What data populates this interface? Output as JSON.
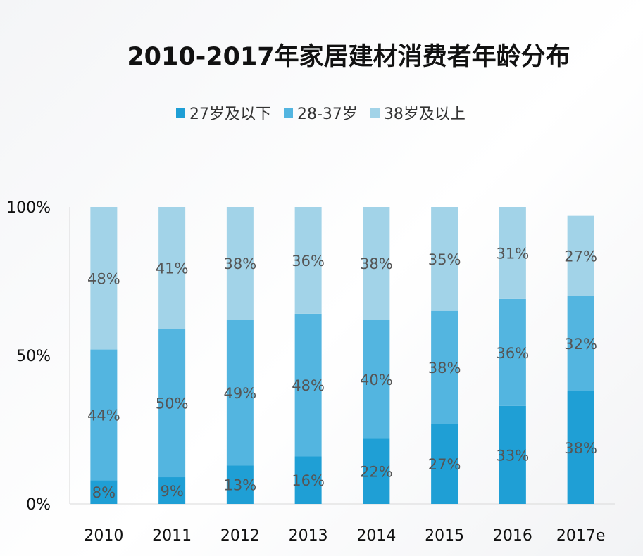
{
  "chart_data": {
    "type": "bar",
    "stacked": true,
    "title": "2010-2017年家居建材消费者年龄分布",
    "categories": [
      "2010",
      "2011",
      "2012",
      "2013",
      "2014",
      "2015",
      "2016",
      "2017e"
    ],
    "series": [
      {
        "name": "27岁及以下",
        "color": "#1f9fd5",
        "values": [
          8,
          9,
          13,
          16,
          22,
          27,
          33,
          38
        ],
        "labels": [
          "8%",
          "9%",
          "13%",
          "16%",
          "22%",
          "27%",
          "33%",
          "38%"
        ]
      },
      {
        "name": "28-37岁",
        "color": "#53b5e0",
        "values": [
          44,
          50,
          49,
          48,
          40,
          38,
          36,
          32
        ],
        "labels": [
          "44%",
          "50%",
          "49%",
          "48%",
          "40%",
          "38%",
          "36%",
          "32%"
        ]
      },
      {
        "name": "38岁及以上",
        "color": "#a2d3e8",
        "values": [
          48,
          41,
          38,
          36,
          38,
          35,
          31,
          27
        ],
        "labels": [
          "48%",
          "41%",
          "38%",
          "36%",
          "38%",
          "35%",
          "31%",
          "27%"
        ]
      }
    ],
    "yticks": [
      "0%",
      "50%",
      "100%"
    ],
    "ylim": [
      0,
      100
    ],
    "legend_position": "top",
    "grid": false
  }
}
